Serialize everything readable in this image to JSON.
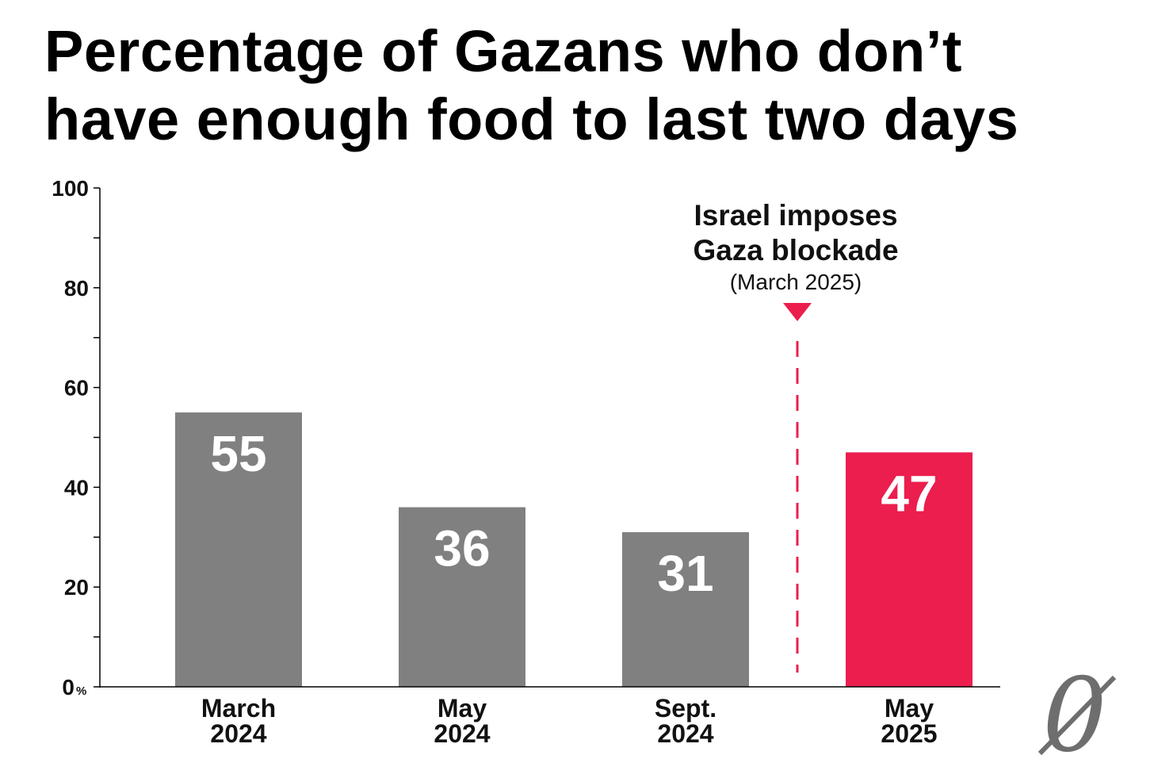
{
  "title_lines": [
    "Percentage of Gazans who don’t",
    "have enough food to last two days"
  ],
  "chart_data": {
    "type": "bar",
    "title": "Percentage of Gazans who don’t have enough food to last two days",
    "categories": [
      [
        "March",
        "2024"
      ],
      [
        "May",
        "2024"
      ],
      [
        "Sept.",
        "2024"
      ],
      [
        "May",
        "2025"
      ]
    ],
    "values": [
      55,
      36,
      31,
      47
    ],
    "ylim": [
      0,
      100
    ],
    "yticks": [
      "0",
      "20",
      "40",
      "60",
      "80",
      "100"
    ],
    "ytick_values": [
      0,
      20,
      40,
      60,
      80,
      100
    ],
    "y_unit": "%",
    "bar_colors": [
      "#808080",
      "#808080",
      "#808080",
      "#eb1e4e"
    ],
    "annotation": {
      "lines": [
        "Israel imposes",
        "Gaza blockade"
      ],
      "sub": "(March 2025)",
      "position_between": [
        2,
        3
      ],
      "color": "#eb1e4e"
    },
    "grid": false
  },
  "colors": {
    "gray": "#808080",
    "accent": "#eb1e4e",
    "axis": "#000000"
  },
  "logo": {
    "icon": "zero-slash-logo",
    "glyph": "0"
  }
}
